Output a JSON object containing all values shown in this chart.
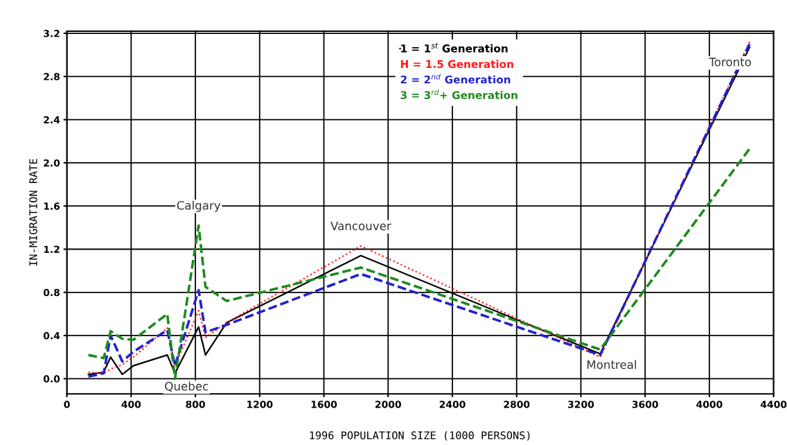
{
  "chart_data": {
    "type": "line",
    "xlabel": "1996 POPULATION SIZE (1000 PERSONS)",
    "ylabel": "IN-MIGRATION RATE",
    "x": [
      134,
      229,
      272,
      345,
      414,
      625,
      673,
      820,
      863,
      995,
      1830,
      3320,
      4250
    ],
    "series": [
      {
        "name": "1 = 1$^{st}$ Generation",
        "color": "#000000",
        "line_style": "solid",
        "values": [
          0.04,
          0.06,
          0.2,
          0.04,
          0.12,
          0.22,
          0.05,
          0.48,
          0.22,
          0.52,
          1.14,
          0.23,
          3.07
        ]
      },
      {
        "name": "H = 1.5 Generation",
        "color": "#ff1a1a",
        "line_style": "dotted",
        "values": [
          0.06,
          0.05,
          0.09,
          0.13,
          0.2,
          0.47,
          0.12,
          0.63,
          0.38,
          0.52,
          1.23,
          0.2,
          3.12
        ]
      },
      {
        "name": "2 = 2$^{nd}$ Generation",
        "color": "#2222cc",
        "line_style": "dashed",
        "values": [
          0.02,
          0.05,
          0.4,
          0.16,
          0.25,
          0.45,
          0.12,
          0.82,
          0.43,
          0.5,
          0.97,
          0.22,
          3.1
        ]
      },
      {
        "name": "3 = 3$^{rd}$+ Generation",
        "color": "#1e8a1e",
        "line_style": "dashed",
        "values": [
          0.22,
          0.19,
          0.44,
          0.37,
          0.36,
          0.6,
          0.0,
          1.42,
          0.85,
          0.72,
          1.03,
          0.27,
          2.13
        ]
      }
    ],
    "xlim": [
      0,
      4400
    ],
    "ylim": [
      -0.14,
      3.22
    ],
    "xticks": [
      0,
      400,
      800,
      1200,
      1600,
      2000,
      2400,
      2800,
      3200,
      3600,
      4000,
      4400
    ],
    "yticks": [
      {
        "value": 0,
        "label": "0.0"
      },
      0.4,
      0.8,
      1.2,
      1.6,
      {
        "value": 2,
        "label": "2.0"
      },
      2.4,
      2.8,
      3.2
    ],
    "grid": true,
    "legend": "top",
    "marker": "none",
    "annotations": [
      {
        "text": "Calgary",
        "x": 820,
        "y": 1.42
      },
      {
        "text": "Vancouver",
        "x": 1830,
        "y": 1.23
      },
      {
        "text": "Quebec",
        "x": 673,
        "y": 0.0
      },
      {
        "text": "Montreal",
        "x": 3320,
        "y": 0.2
      },
      {
        "text": "Toronto",
        "x": 4250,
        "y": 3.12
      }
    ]
  }
}
